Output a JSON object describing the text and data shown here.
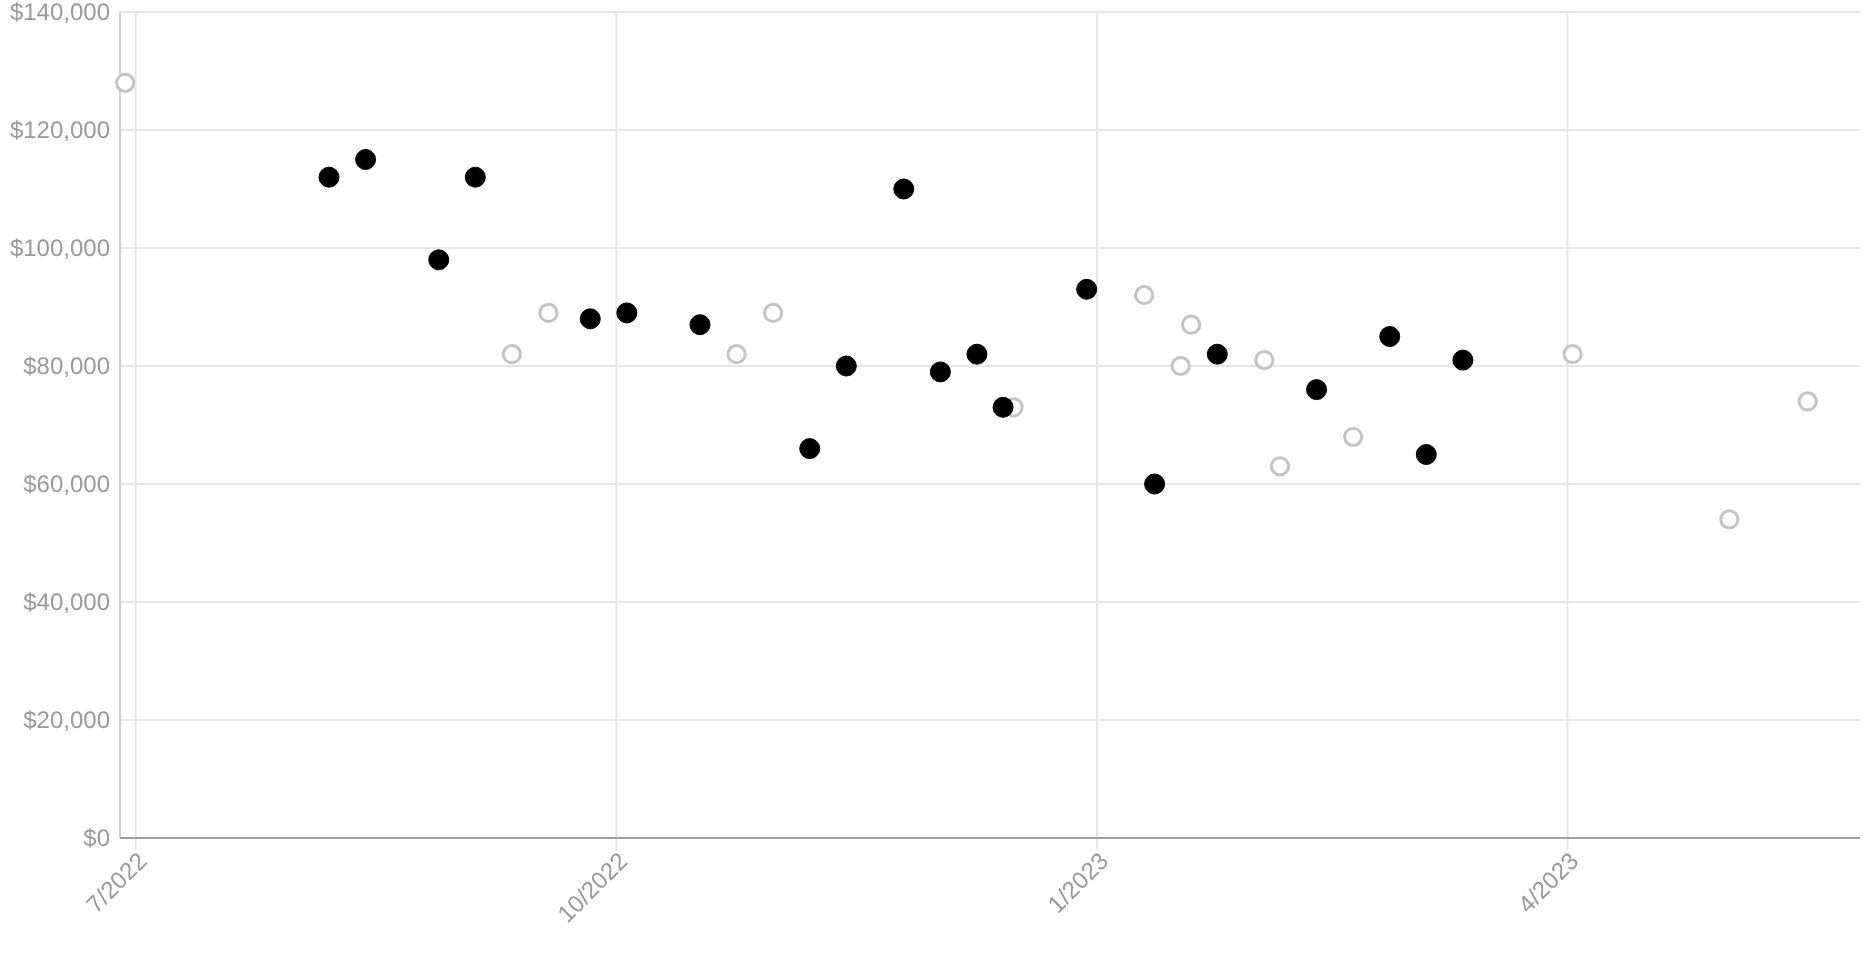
{
  "chart_data": {
    "type": "scatter",
    "xlim": [
      "2022-06-28",
      "2023-05-27"
    ],
    "xticks": [
      {
        "value": "2022-07",
        "label": "7/2022"
      },
      {
        "value": "2022-10",
        "label": "10/2022"
      },
      {
        "value": "2023-01",
        "label": "1/2023"
      },
      {
        "value": "2023-04",
        "label": "4/2023"
      }
    ],
    "ylim": [
      0,
      140000
    ],
    "yticks": [
      {
        "value": 0,
        "label": "$0"
      },
      {
        "value": 20000,
        "label": "$20,000"
      },
      {
        "value": 40000,
        "label": "$40,000"
      },
      {
        "value": 60000,
        "label": "$60,000"
      },
      {
        "value": 80000,
        "label": "$80,000"
      },
      {
        "value": 100000,
        "label": "$100,000"
      },
      {
        "value": 120000,
        "label": "$120,000"
      },
      {
        "value": 140000,
        "label": "$140,000"
      }
    ],
    "grid": true,
    "marker": "circle",
    "series": [
      {
        "color": "#c4c4c4",
        "marker": "circle-open",
        "x": [
          "2022-06-29",
          "2022-09-11",
          "2022-09-18",
          "2022-10-24",
          "2022-10-31",
          "2022-12-16",
          "2023-01-10",
          "2023-01-17",
          "2023-01-19",
          "2023-02-02",
          "2023-02-05",
          "2023-02-19",
          "2023-04-02",
          "2023-05-02",
          "2023-05-17"
        ],
        "values": [
          128000,
          82000,
          89000,
          82000,
          89000,
          73000,
          92000,
          80000,
          87000,
          81000,
          63000,
          68000,
          82000,
          54000,
          74000
        ]
      },
      {
        "color": "#000000",
        "x": [
          "2022-08-07",
          "2022-08-14",
          "2022-08-28",
          "2022-09-04",
          "2022-09-26",
          "2022-10-03",
          "2022-10-17",
          "2022-11-07",
          "2022-11-14",
          "2022-11-25",
          "2022-12-02",
          "2022-12-09",
          "2022-12-14",
          "2022-12-30",
          "2023-01-12",
          "2023-01-24",
          "2023-02-12",
          "2023-02-26",
          "2023-03-05",
          "2023-03-12"
        ],
        "values": [
          112000,
          115000,
          98000,
          112000,
          88000,
          89000,
          87000,
          66000,
          80000,
          110000,
          79000,
          82000,
          73000,
          93000,
          60000,
          82000,
          76000,
          85000,
          65000,
          81000
        ]
      }
    ]
  }
}
